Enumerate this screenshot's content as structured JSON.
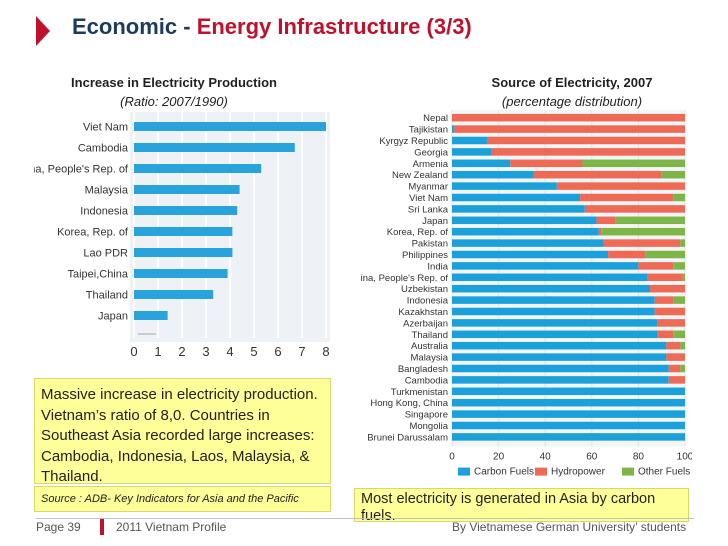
{
  "header": {
    "title_part1": "Economic - ",
    "title_part2": "Energy Infrastructure (3/3)"
  },
  "left": {
    "title": "Increase in Electricity Production",
    "subtitle": "(Ratio: 2007/1990)",
    "note": "Massive increase in electricity production. Vietnam’s ratio of  8,0. Countries in Southeast Asia recorded large increases: Cambodia, Indonesia, Laos, Malaysia, & Thailand.",
    "source": "Source : ADB- Key Indicators for Asia and the Pacific"
  },
  "right": {
    "title": "Source of Electricity, 2007",
    "subtitle": "(percentage distribution)",
    "note": "Most electricity is generated in Asia by carbon fuels."
  },
  "footer": {
    "page": "Page 39",
    "middle": "2011  Vietnam Profile",
    "right": "By Vietnamese German University’ students"
  },
  "colors": {
    "bar_blue": "#29a3dc",
    "carbon": "#1aa0da",
    "hydro": "#ef6a55",
    "other": "#7db646",
    "accent_red": "#c0112c"
  },
  "chart_data": [
    {
      "type": "bar",
      "orientation": "horizontal",
      "title": "Increase in Electricity Production",
      "subtitle": "(Ratio: 2007/1990)",
      "categories": [
        "Viet Nam",
        "Cambodia",
        "China, People's Rep. of",
        "Malaysia",
        "Indonesia",
        "Korea, Rep. of",
        "Lao PDR",
        "Taipei,China",
        "Thailand",
        "Japan"
      ],
      "values": [
        8.0,
        6.7,
        5.3,
        4.4,
        4.3,
        4.1,
        4.1,
        3.9,
        3.3,
        1.4
      ],
      "xlim": [
        0,
        8
      ],
      "xticks": [
        "0",
        "1",
        "2",
        "3",
        "4",
        "5",
        "6",
        "7",
        "8"
      ],
      "grid": true
    },
    {
      "type": "bar",
      "orientation": "horizontal",
      "stacked": true,
      "title": "Source of Electricity, 2007",
      "subtitle": "(percentage distribution)",
      "categories": [
        "Nepal",
        "Tajikistan",
        "Kyrgyz Republic",
        "Georgia",
        "Armenia",
        "New Zealand",
        "Myanmar",
        "Viet Nam",
        "Sri Lanka",
        "Japan",
        "Korea, Rep. of",
        "Pakistan",
        "Philippines",
        "India",
        "China, People's Rep. of",
        "Uzbekistan",
        "Indonesia",
        "Kazakhstan",
        "Azerbaijan",
        "Thailand",
        "Australia",
        "Malaysia",
        "Bangladesh",
        "Cambodia",
        "Turkmenistan",
        "Hong Kong, China",
        "Singapore",
        "Mongolia",
        "Brunei Darussalam"
      ],
      "series": [
        {
          "name": "Carbon Fuels",
          "values": [
            0,
            1,
            15,
            17,
            25,
            35,
            45,
            55,
            57,
            62,
            63,
            65,
            67,
            80,
            84,
            85,
            87,
            87,
            88,
            88,
            92,
            92,
            93,
            93,
            100,
            100,
            100,
            100,
            100
          ]
        },
        {
          "name": "Hydropower",
          "values": [
            100,
            99,
            85,
            83,
            31,
            55,
            55,
            40,
            43,
            8,
            1,
            33,
            16,
            15,
            15,
            15,
            8,
            13,
            12,
            7,
            6,
            8,
            5,
            7,
            0,
            0,
            0,
            0,
            0
          ]
        },
        {
          "name": "Other Fuels",
          "values": [
            0,
            0,
            0,
            0,
            44,
            10,
            0,
            5,
            0,
            30,
            36,
            2,
            17,
            5,
            1,
            0,
            5,
            0,
            0,
            5,
            2,
            0,
            2,
            0,
            0,
            0,
            0,
            0,
            0
          ]
        }
      ],
      "xlim": [
        0,
        100
      ],
      "xticks": [
        "0",
        "20",
        "40",
        "60",
        "80",
        "100"
      ],
      "legend": "bottom",
      "grid": true
    }
  ]
}
